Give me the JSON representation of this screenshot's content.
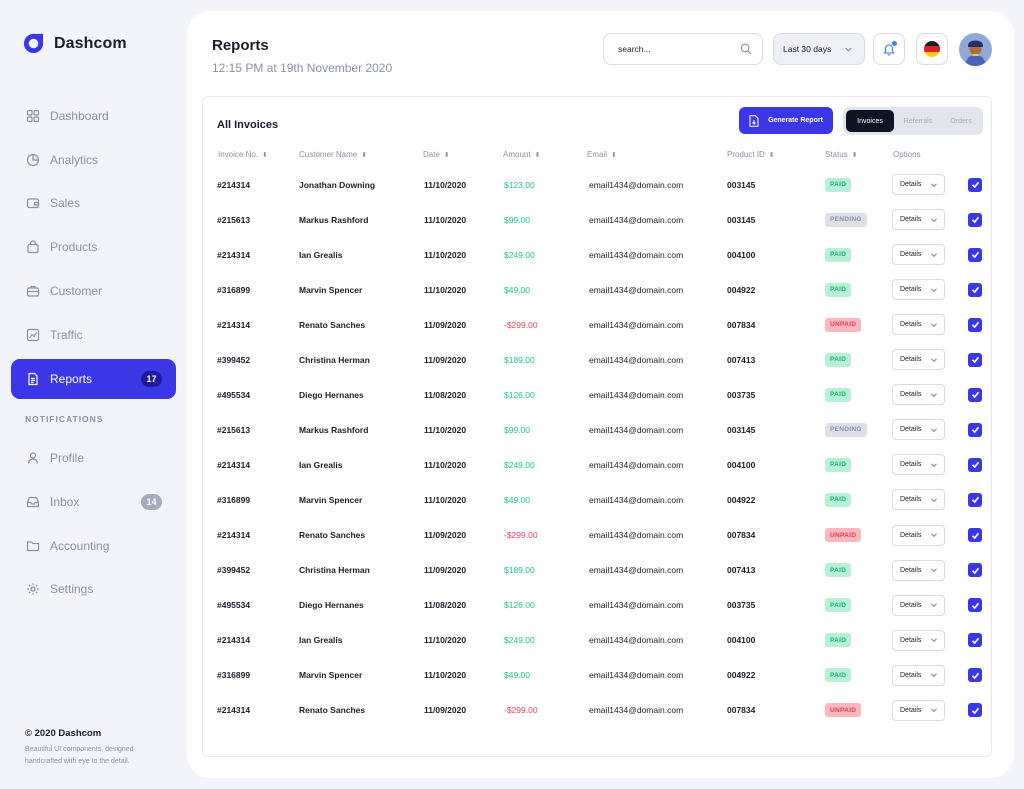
{
  "app": {
    "name": "Dashcom"
  },
  "sidebar": {
    "items": [
      {
        "label": "Dashboard",
        "icon": "dashboard-icon"
      },
      {
        "label": "Analytics",
        "icon": "pie-chart-icon"
      },
      {
        "label": "Sales",
        "icon": "wallet-icon"
      },
      {
        "label": "Products",
        "icon": "bag-icon"
      },
      {
        "label": "Customer",
        "icon": "briefcase-icon"
      },
      {
        "label": "Traffic",
        "icon": "chart-icon"
      },
      {
        "label": "Reports",
        "icon": "document-icon",
        "badge": "17",
        "active": true
      }
    ],
    "section_label": "NOTIFICATIONS",
    "notif_items": [
      {
        "label": "Profile",
        "icon": "user-icon"
      },
      {
        "label": "Inbox",
        "icon": "inbox-icon",
        "badge": "14"
      },
      {
        "label": "Accounting",
        "icon": "folder-icon"
      },
      {
        "label": "Settings",
        "icon": "gear-icon"
      }
    ],
    "footer": {
      "copyright": "© 2020 Dashcom",
      "description": "Beautiful UI components, designed handcrafted with eye to the detail."
    }
  },
  "header": {
    "title": "Reports",
    "subtitle": "12:15 PM at 19th November 2020",
    "search_placeholder": "search...",
    "range_label": "Last 30 days"
  },
  "colors": {
    "accent": "#3b37e6",
    "paid": "#18b26f",
    "pending": "#8a91a5",
    "unpaid": "#e13a4f"
  },
  "invoices": {
    "title": "All Invoices",
    "generate_label": "Generate Report",
    "tabs": [
      "Invoices",
      "Referrals",
      "Orders"
    ],
    "active_tab": "Invoices",
    "columns": [
      "Invoice No.",
      "Customer Name",
      "Date",
      "Amount",
      "Email",
      "Product ID",
      "Status",
      "Options"
    ],
    "details_label": "Details",
    "rows": [
      {
        "invoice": "#214314",
        "name": "Jonathan Downing",
        "date": "11/10/2020",
        "amount": "$123.00",
        "email": "email1434@domain.com",
        "product": "003145",
        "status": "PAID"
      },
      {
        "invoice": "#215613",
        "name": "Markus Rashford",
        "date": "11/10/2020",
        "amount": "$99.00",
        "email": "email1434@domain.com",
        "product": "003145",
        "status": "PENDING"
      },
      {
        "invoice": "#214314",
        "name": "Ian Grealis",
        "date": "11/10/2020",
        "amount": "$249.00",
        "email": "email1434@domain.com",
        "product": "004100",
        "status": "PAID"
      },
      {
        "invoice": "#316899",
        "name": "Marvin Spencer",
        "date": "11/10/2020",
        "amount": "$49.00",
        "email": "email1434@domain.com",
        "product": "004922",
        "status": "PAID"
      },
      {
        "invoice": "#214314",
        "name": "Renato Sanches",
        "date": "11/09/2020",
        "amount": "-$299.00",
        "email": "email1434@domain.com",
        "product": "007834",
        "status": "UNPAID"
      },
      {
        "invoice": "#399452",
        "name": "Christina Herman",
        "date": "11/09/2020",
        "amount": "$189.00",
        "email": "email1434@domain.com",
        "product": "007413",
        "status": "PAID"
      },
      {
        "invoice": "#495534",
        "name": "Diego Hernanes",
        "date": "11/08/2020",
        "amount": "$126.00",
        "email": "email1434@domain.com",
        "product": "003735",
        "status": "PAID"
      },
      {
        "invoice": "#215613",
        "name": "Markus Rashford",
        "date": "11/10/2020",
        "amount": "$99.00",
        "email": "email1434@domain.com",
        "product": "003145",
        "status": "PENDING"
      },
      {
        "invoice": "#214314",
        "name": "Ian Grealis",
        "date": "11/10/2020",
        "amount": "$249.00",
        "email": "email1434@domain.com",
        "product": "004100",
        "status": "PAID"
      },
      {
        "invoice": "#316899",
        "name": "Marvin Spencer",
        "date": "11/10/2020",
        "amount": "$49.00",
        "email": "email1434@domain.com",
        "product": "004922",
        "status": "PAID"
      },
      {
        "invoice": "#214314",
        "name": "Renato Sanches",
        "date": "11/09/2020",
        "amount": "-$299.00",
        "email": "email1434@domain.com",
        "product": "007834",
        "status": "UNPAID"
      },
      {
        "invoice": "#399452",
        "name": "Christina Herman",
        "date": "11/09/2020",
        "amount": "$189.00",
        "email": "email1434@domain.com",
        "product": "007413",
        "status": "PAID"
      },
      {
        "invoice": "#495534",
        "name": "Diego Hernanes",
        "date": "11/08/2020",
        "amount": "$126.00",
        "email": "email1434@domain.com",
        "product": "003735",
        "status": "PAID"
      },
      {
        "invoice": "#214314",
        "name": "Ian Grealis",
        "date": "11/10/2020",
        "amount": "$249.00",
        "email": "email1434@domain.com",
        "product": "004100",
        "status": "PAID"
      },
      {
        "invoice": "#316899",
        "name": "Marvin Spencer",
        "date": "11/10/2020",
        "amount": "$49.00",
        "email": "email1434@domain.com",
        "product": "004922",
        "status": "PAID"
      },
      {
        "invoice": "#214314",
        "name": "Renato Sanches",
        "date": "11/09/2020",
        "amount": "-$299.00",
        "email": "email1434@domain.com",
        "product": "007834",
        "status": "UNPAID"
      }
    ]
  }
}
